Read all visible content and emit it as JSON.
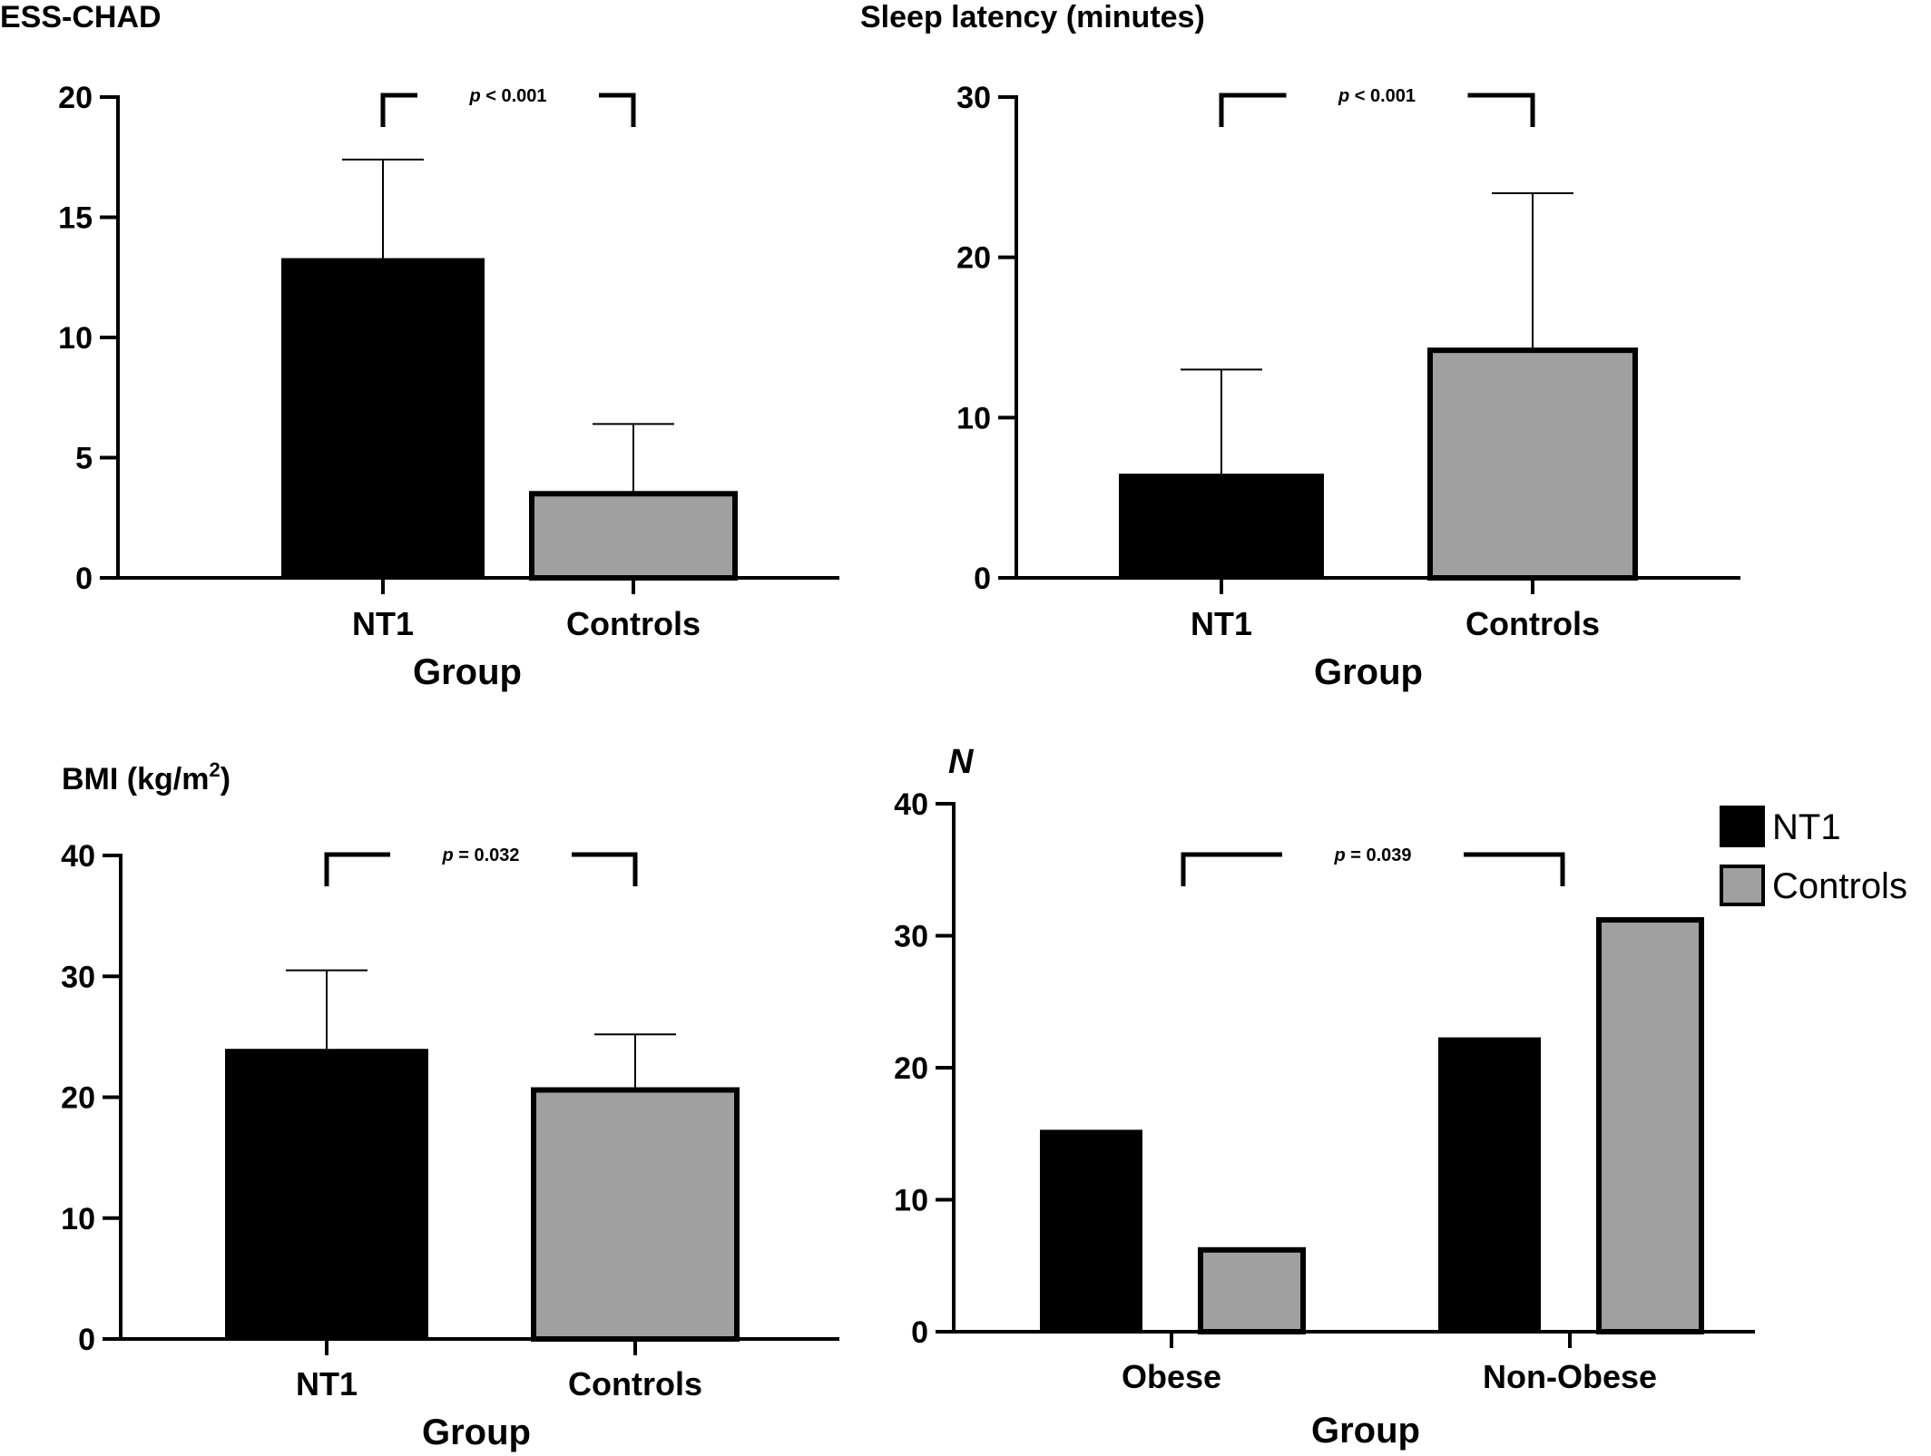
{
  "colors": {
    "nt1": "#000000",
    "controls": "#a0a0a0",
    "axis": "#000000"
  },
  "chart_data": [
    {
      "type": "bar",
      "title": "ESS-CHAD",
      "xlabel": "Group",
      "ylabel": "",
      "categories": [
        "NT1",
        "Controls"
      ],
      "values": [
        13.3,
        3.5
      ],
      "error_plus": [
        4.1,
        2.9
      ],
      "ylim": [
        0,
        20
      ],
      "yticks": [
        0,
        5,
        10,
        15,
        20
      ],
      "annotation": {
        "p_symbol": "p",
        "text": " < 0.001"
      },
      "grid": false
    },
    {
      "type": "bar",
      "title": "Sleep latency (minutes)",
      "xlabel": "Group",
      "ylabel": "",
      "categories": [
        "NT1",
        "Controls"
      ],
      "values": [
        6.5,
        14.2
      ],
      "error_plus": [
        6.5,
        9.8
      ],
      "ylim": [
        0,
        30
      ],
      "yticks": [
        0,
        10,
        20,
        30
      ],
      "annotation": {
        "p_symbol": "p",
        "text": " < 0.001"
      },
      "grid": false
    },
    {
      "type": "bar",
      "title": "BMI (kg/m",
      "title_sup": "2",
      "title_end": ")",
      "xlabel": "Group",
      "ylabel": "",
      "categories": [
        "NT1",
        "Controls"
      ],
      "values": [
        24.0,
        20.6
      ],
      "error_plus": [
        6.5,
        4.6
      ],
      "ylim": [
        0,
        40
      ],
      "yticks": [
        0,
        10,
        20,
        30,
        40
      ],
      "annotation": {
        "p_symbol": "p",
        "text": " = 0.032"
      },
      "grid": false
    },
    {
      "type": "bar",
      "title": "N",
      "xlabel": "Group",
      "ylabel": "",
      "categories": [
        "Obese",
        "Non-Obese"
      ],
      "series": [
        {
          "name": "NT1",
          "values": [
            15.3,
            22.3
          ]
        },
        {
          "name": "Controls",
          "values": [
            6.2,
            31.2
          ]
        }
      ],
      "ylim": [
        0,
        40
      ],
      "yticks": [
        0,
        10,
        20,
        30,
        40
      ],
      "legend": "top-right",
      "annotation": {
        "p_symbol": "p",
        "text": " = 0.039"
      },
      "grid": false
    }
  ]
}
